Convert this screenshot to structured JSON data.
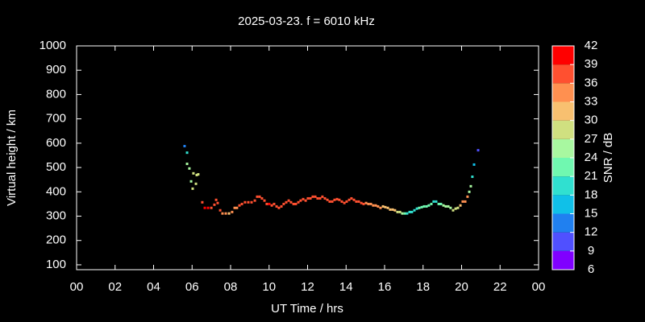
{
  "chart_data": {
    "type": "scatter",
    "title": "2025-03-23. f = 6010 kHz",
    "x_label": "UT Time / hrs",
    "y_label": "Virtual height / km",
    "x": [
      5.61,
      5.74,
      5.74,
      5.86,
      6.07,
      6.24,
      6.32,
      5.95,
      6.2,
      6.03,
      6.53,
      6.66,
      6.83,
      7.0,
      7.16,
      7.25,
      7.33,
      7.46,
      7.58,
      7.75,
      7.92,
      8.08,
      8.21,
      8.33,
      8.46,
      8.59,
      8.75,
      8.92,
      9.09,
      9.26,
      9.38,
      9.51,
      9.63,
      9.76,
      9.88,
      10.01,
      10.14,
      10.26,
      10.39,
      10.51,
      10.64,
      10.76,
      10.89,
      11.02,
      11.14,
      11.27,
      11.39,
      11.52,
      11.64,
      11.77,
      11.9,
      12.02,
      12.15,
      12.27,
      12.4,
      12.52,
      12.65,
      12.77,
      12.9,
      13.03,
      13.15,
      13.28,
      13.4,
      13.53,
      13.65,
      13.78,
      13.91,
      14.03,
      14.16,
      14.28,
      14.41,
      14.53,
      14.66,
      14.79,
      14.91,
      15.04,
      15.16,
      15.29,
      15.41,
      15.54,
      15.66,
      15.79,
      15.92,
      16.04,
      16.17,
      16.29,
      16.42,
      16.54,
      16.67,
      16.8,
      16.92,
      17.05,
      17.17,
      17.3,
      17.42,
      17.55,
      17.68,
      17.8,
      17.93,
      18.05,
      18.18,
      18.3,
      18.43,
      18.55,
      18.68,
      18.81,
      18.93,
      19.06,
      19.18,
      19.31,
      19.43,
      19.56,
      19.69,
      19.81,
      19.94,
      20.06,
      20.19,
      20.31,
      20.4,
      20.48,
      20.56,
      20.65,
      20.86
    ],
    "values": [
      588,
      561,
      515,
      496,
      476,
      469,
      472,
      443,
      433,
      413,
      357,
      334,
      334,
      334,
      347,
      367,
      354,
      324,
      311,
      311,
      311,
      317,
      334,
      334,
      344,
      350,
      357,
      357,
      357,
      364,
      380,
      380,
      373,
      364,
      350,
      350,
      344,
      350,
      340,
      334,
      340,
      350,
      357,
      364,
      357,
      350,
      350,
      357,
      364,
      370,
      364,
      373,
      373,
      380,
      380,
      373,
      373,
      380,
      373,
      367,
      360,
      360,
      367,
      370,
      367,
      360,
      354,
      360,
      367,
      373,
      367,
      360,
      360,
      354,
      350,
      354,
      350,
      350,
      344,
      344,
      340,
      334,
      340,
      337,
      334,
      327,
      327,
      324,
      317,
      317,
      311,
      311,
      311,
      317,
      317,
      324,
      331,
      334,
      337,
      340,
      340,
      344,
      350,
      360,
      360,
      350,
      350,
      344,
      340,
      340,
      334,
      324,
      331,
      334,
      344,
      360,
      360,
      380,
      400,
      423,
      462,
      512,
      571
    ],
    "color_values": [
      13,
      19,
      24,
      25,
      28,
      29,
      28,
      25,
      27,
      29,
      37,
      39,
      39,
      38,
      38,
      38,
      38,
      36,
      34,
      34,
      32,
      33,
      34,
      35,
      36,
      36,
      37,
      36,
      37,
      37,
      38,
      38,
      38,
      38,
      38,
      39,
      38,
      38,
      38,
      38,
      37,
      38,
      37,
      37,
      36,
      37,
      36,
      37,
      37,
      36,
      37,
      37,
      37,
      38,
      37,
      37,
      37,
      38,
      37,
      37,
      36,
      37,
      37,
      37,
      37,
      37,
      37,
      37,
      37,
      37,
      37,
      37,
      36,
      36,
      36,
      35,
      35,
      34,
      34,
      34,
      33,
      33,
      32,
      32,
      31,
      30,
      30,
      30,
      29,
      28,
      26,
      22,
      20,
      19,
      19,
      20,
      20,
      21,
      21,
      22,
      22,
      22,
      22,
      19,
      19,
      22,
      23,
      24,
      25,
      25,
      26,
      27,
      28,
      28,
      30,
      33,
      33,
      34,
      26,
      24,
      20,
      17,
      11
    ],
    "xlim": [
      0,
      24
    ],
    "xticks": [
      {
        "value": 0,
        "label": "00"
      },
      {
        "value": 2,
        "label": "02"
      },
      {
        "value": 4,
        "label": "04"
      },
      {
        "value": 6,
        "label": "06"
      },
      {
        "value": 8,
        "label": "08"
      },
      10,
      12,
      14,
      16,
      18,
      20,
      22,
      {
        "value": 24,
        "label": "00"
      }
    ],
    "ylim": [
      80,
      1000
    ],
    "yticks": [
      100,
      200,
      300,
      400,
      500,
      600,
      700,
      800,
      900,
      1000
    ],
    "colorbar": {
      "label": "SNR / dB",
      "lim": [
        6,
        42
      ],
      "ticks": [
        6,
        9,
        12,
        15,
        18,
        21,
        24,
        27,
        30,
        33,
        36,
        39,
        42
      ],
      "colors": [
        "#8000ff",
        "#5050ff",
        "#2080f0",
        "#10c0e8",
        "#30e0d0",
        "#70f8b0",
        "#a8f8a0",
        "#d0e080",
        "#f8c070",
        "#ff9050",
        "#ff5030",
        "#ff0000"
      ]
    }
  }
}
